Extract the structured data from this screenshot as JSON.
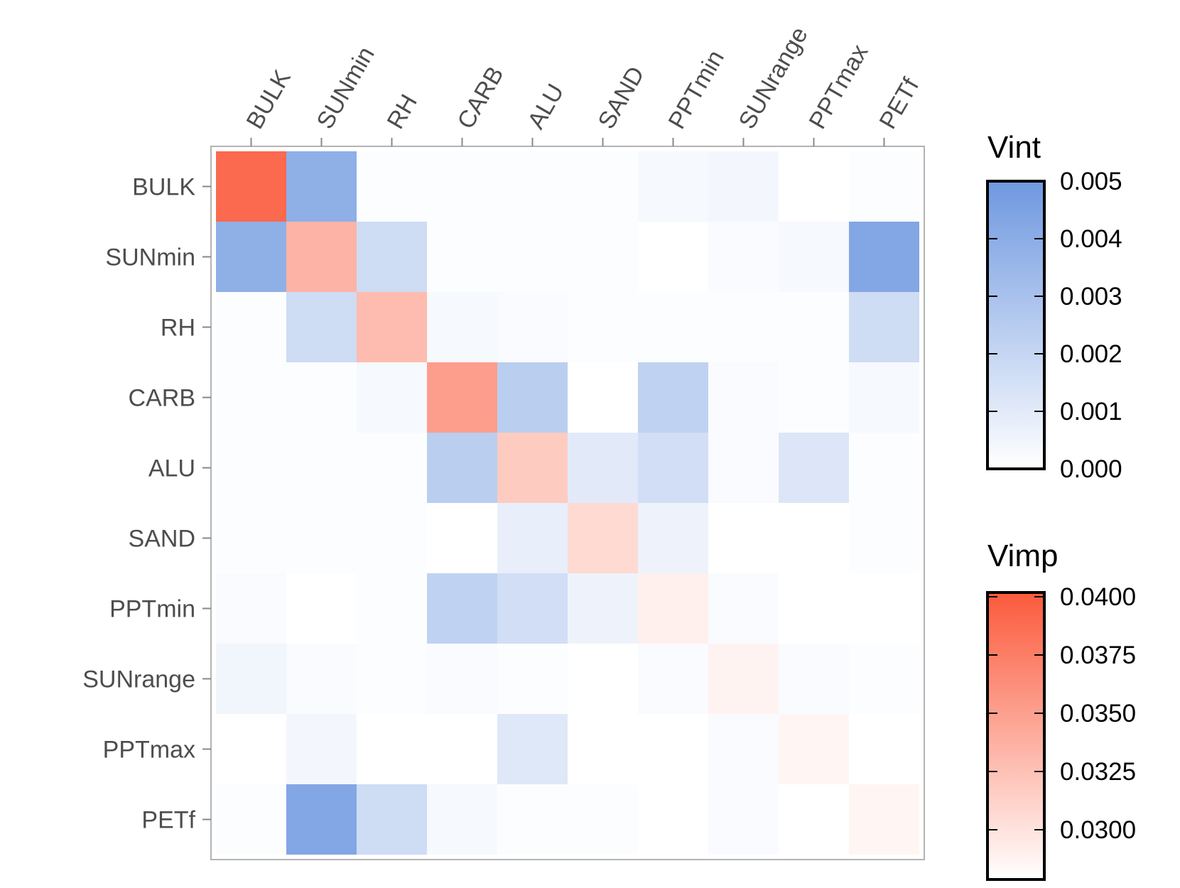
{
  "chart_data": {
    "type": "heatmap",
    "variables": [
      "BULK",
      "SUNmin",
      "RH",
      "CARB",
      "ALU",
      "SAND",
      "PPTmin",
      "SUNrange",
      "PPTmax",
      "PETf"
    ],
    "diagonal_metric": "Vimp",
    "off_diagonal_metric": "Vint",
    "vimp": [
      0.039,
      0.034,
      0.0335,
      0.0355,
      0.0325,
      0.0315,
      0.03,
      0.0298,
      0.0296,
      0.0296
    ],
    "vint": [
      [
        null,
        0.0039,
        0.0001,
        0.0001,
        0.0001,
        0.0001,
        0.0003,
        0.0004,
        0.0,
        0.0001
      ],
      [
        0.0039,
        null,
        0.0017,
        0.0001,
        0.0001,
        0.0001,
        0.0,
        0.0002,
        0.0003,
        0.0043
      ],
      [
        0.0001,
        0.0017,
        null,
        0.0003,
        0.0002,
        0.0001,
        0.0001,
        0.0001,
        0.0001,
        0.0017
      ],
      [
        0.0001,
        0.0001,
        0.0003,
        null,
        0.0024,
        0.0,
        0.0022,
        0.0002,
        0.0001,
        0.0003
      ],
      [
        0.0001,
        0.0001,
        0.0001,
        0.0024,
        null,
        0.001,
        0.0016,
        0.0002,
        0.0012,
        0.0001
      ],
      [
        0.0001,
        0.0001,
        0.0001,
        0.0,
        0.0008,
        null,
        0.0006,
        0.0,
        0.0,
        0.0001
      ],
      [
        0.0002,
        0.0,
        0.0001,
        0.0022,
        0.0016,
        0.0006,
        null,
        0.0002,
        0.0,
        0.0
      ],
      [
        0.0005,
        0.0002,
        0.0001,
        0.0002,
        0.0001,
        0.0,
        0.0002,
        null,
        0.0002,
        0.0001
      ],
      [
        0.0,
        0.0004,
        0.0,
        0.0,
        0.0011,
        0.0,
        0.0,
        0.0002,
        null,
        0.0
      ],
      [
        0.0001,
        0.0043,
        0.0017,
        0.0003,
        0.0001,
        0.0001,
        0.0,
        0.0002,
        0.0,
        null
      ]
    ],
    "legends": [
      {
        "title": "Vint",
        "metric": "vint",
        "range": [
          0.0,
          0.005
        ],
        "ticks": [
          0.0,
          0.001,
          0.002,
          0.003,
          0.004,
          0.005
        ],
        "tick_labels": [
          "0.000",
          "0.001",
          "0.002",
          "0.003",
          "0.004",
          "0.005"
        ],
        "color_low": "#ffffff",
        "color_high": "#6f98e0"
      },
      {
        "title": "Vimp",
        "metric": "vimp",
        "range": [
          0.029,
          0.04
        ],
        "ticks": [
          0.03,
          0.0325,
          0.035,
          0.0375,
          0.04
        ],
        "tick_labels": [
          "0.0300",
          "0.0325",
          "0.0350",
          "0.0375",
          "0.0400"
        ],
        "color_low": "#ffffff",
        "color_high": "#fb5a3c"
      }
    ],
    "border_color": "#b3b3b3",
    "tick_color": "#888888"
  }
}
